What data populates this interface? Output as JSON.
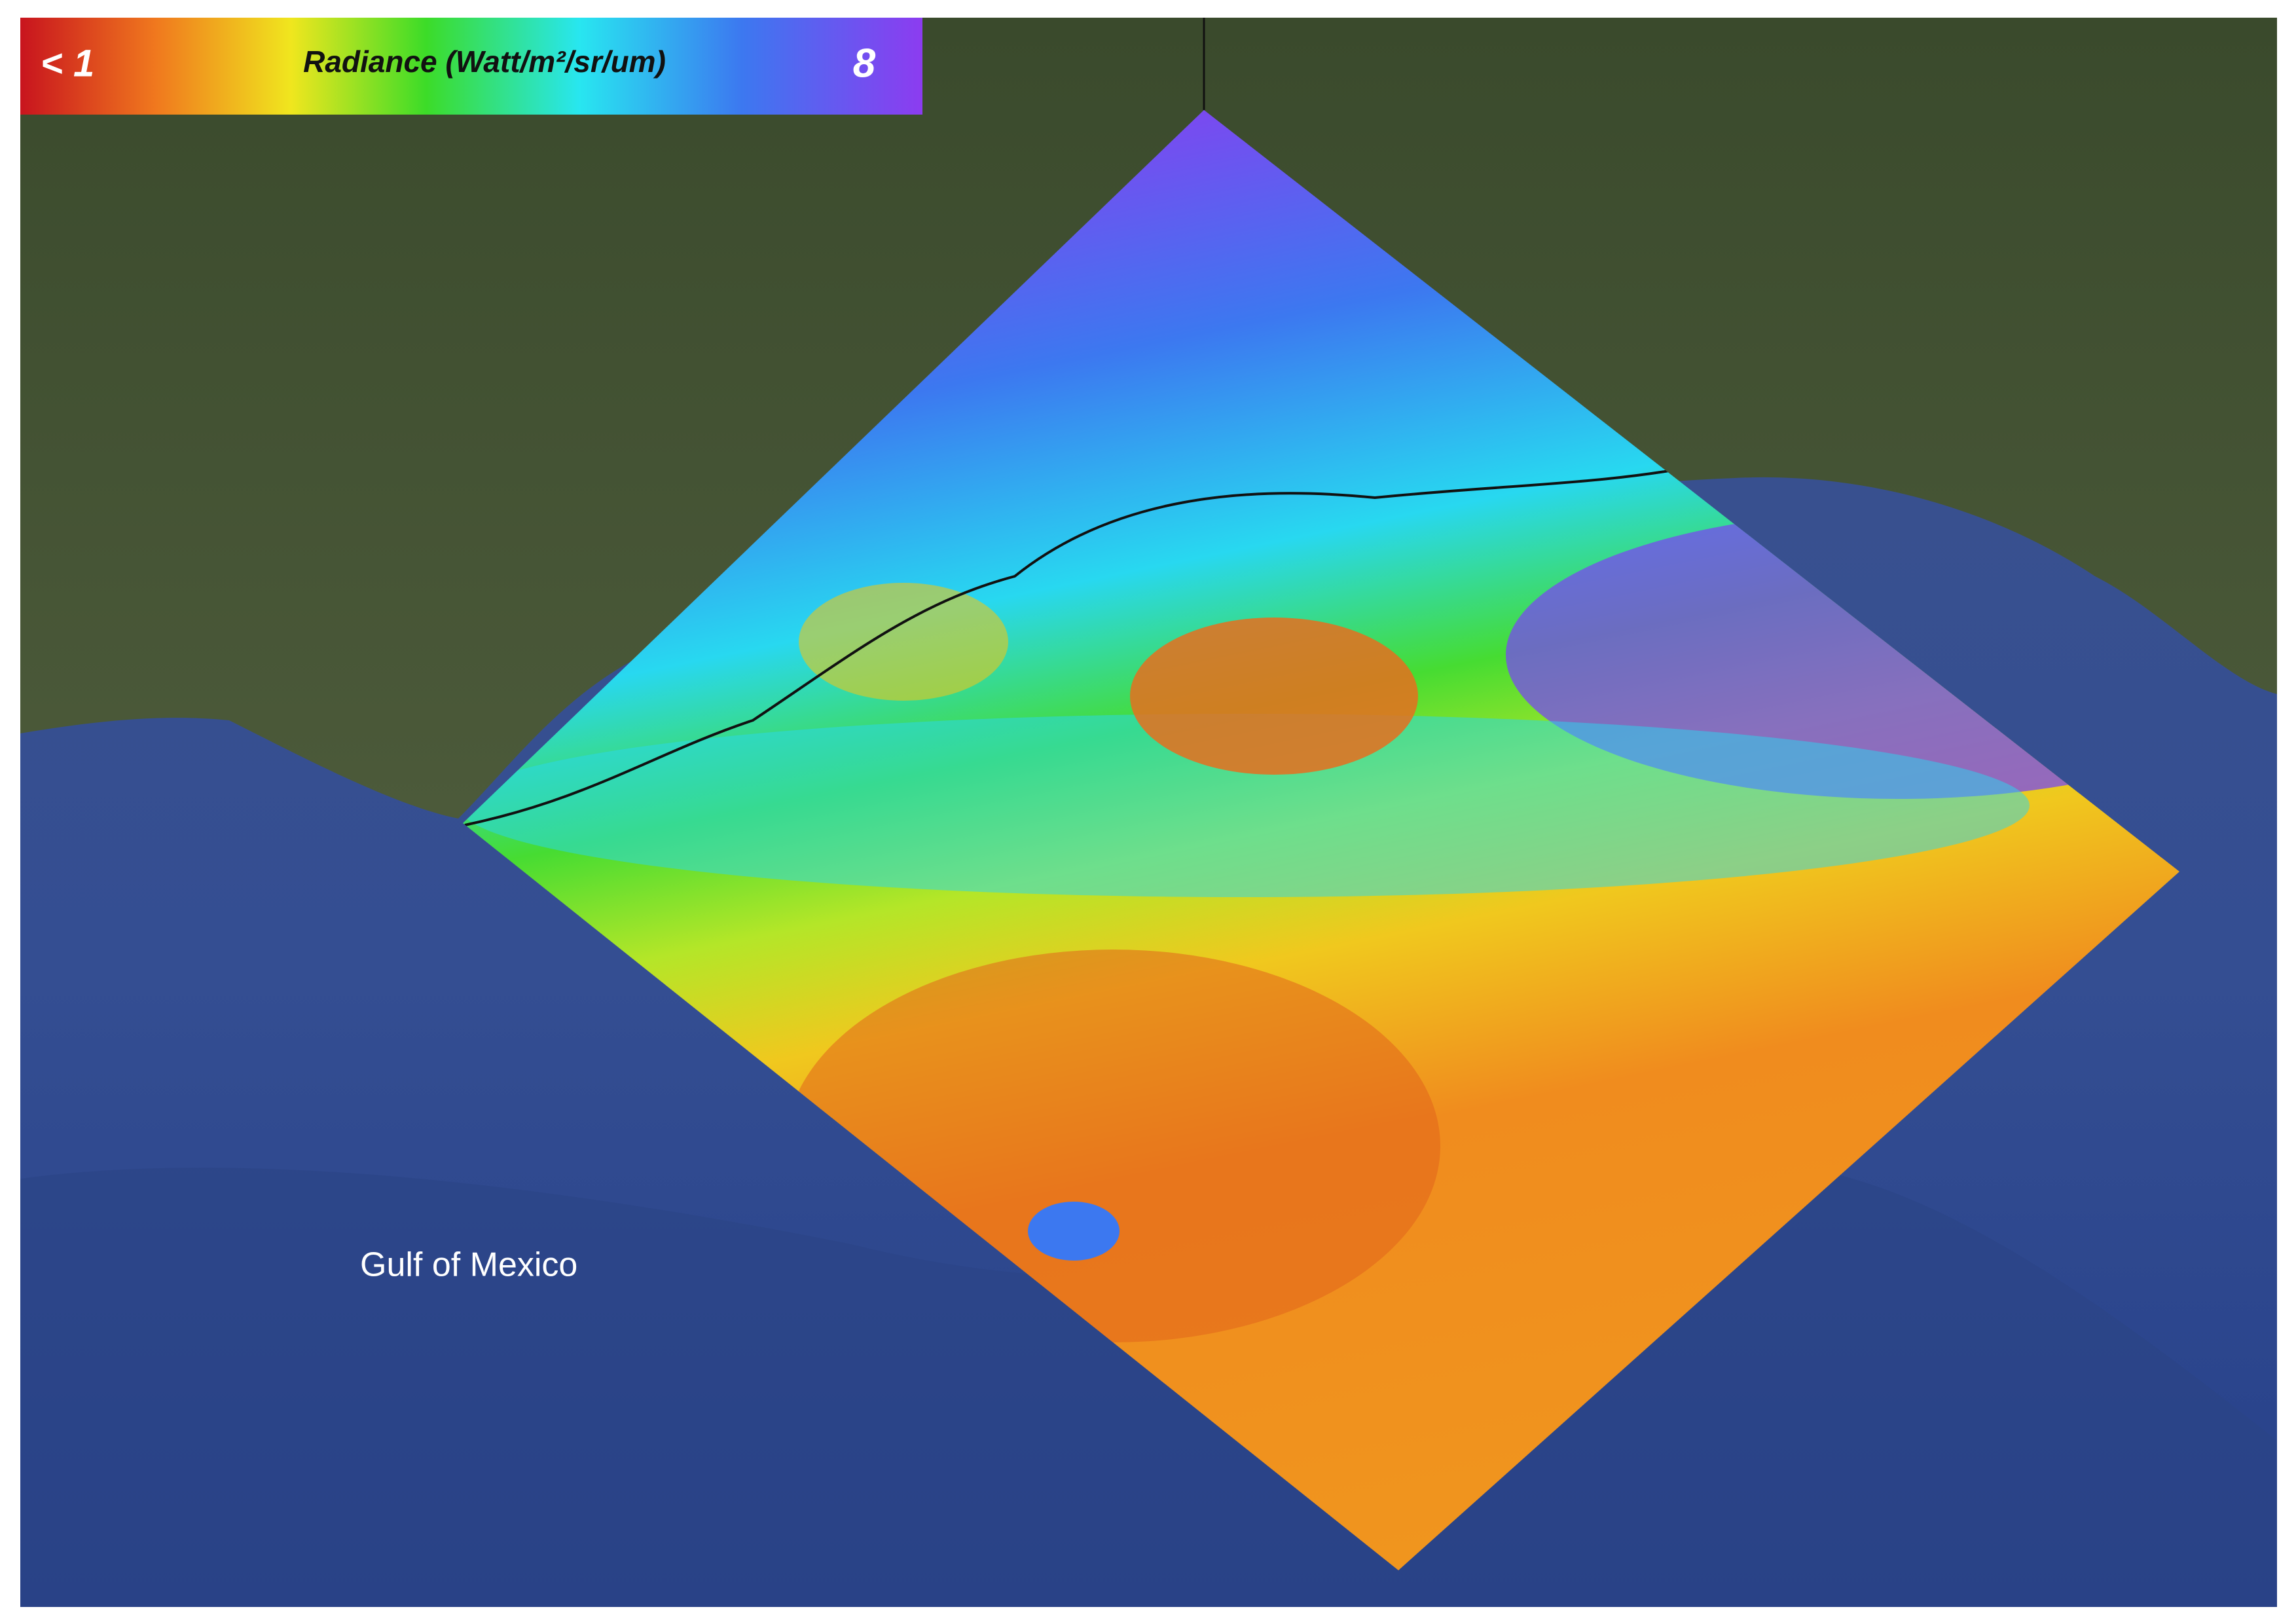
{
  "legend": {
    "min_label": "< 1",
    "title": "Radiance (Watt/m²/sr/um)",
    "max_label": "8"
  },
  "map": {
    "label": "Gulf of Mexico"
  }
}
